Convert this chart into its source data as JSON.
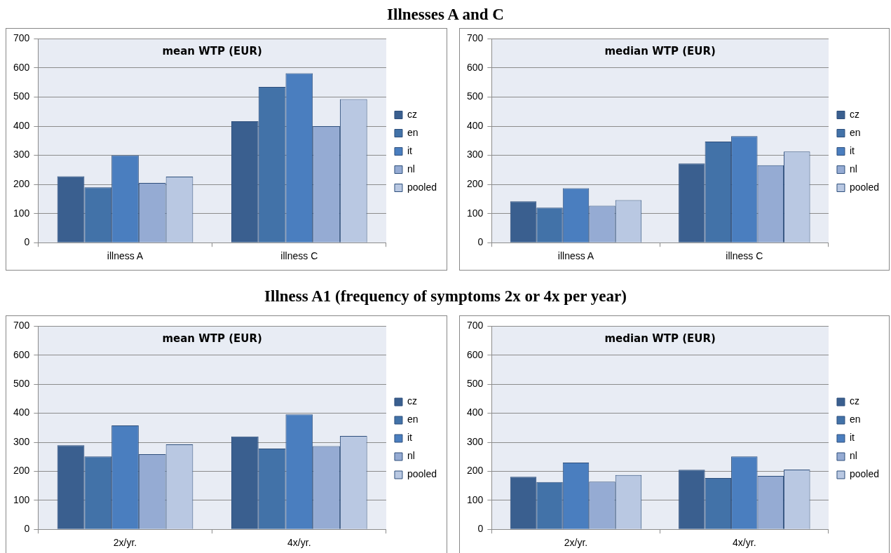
{
  "chart_data": [
    {
      "type": "bar",
      "title": "mean WTP (EUR)",
      "annotations": [
        "Illnesses A and C"
      ],
      "categories": [
        "illness A",
        "illness C"
      ],
      "ylim": [
        0,
        700
      ],
      "yticks": [
        0,
        100,
        200,
        300,
        400,
        500,
        600,
        700
      ],
      "grid": "y",
      "legend": "right",
      "series": [
        {
          "name": "cz",
          "color": "#3a5f8f",
          "values": [
            228,
            417
          ]
        },
        {
          "name": "en",
          "color": "#4272a8",
          "values": [
            190,
            535
          ]
        },
        {
          "name": "it",
          "color": "#4a7ebf",
          "values": [
            300,
            582
          ]
        },
        {
          "name": "nl",
          "color": "#95abd3",
          "values": [
            205,
            400
          ]
        },
        {
          "name": "pooled",
          "color": "#b9c8e2",
          "values": [
            227,
            493
          ]
        }
      ]
    },
    {
      "type": "bar",
      "title": "median WTP (EUR)",
      "categories": [
        "illness A",
        "illness C"
      ],
      "ylim": [
        0,
        700
      ],
      "yticks": [
        0,
        100,
        200,
        300,
        400,
        500,
        600,
        700
      ],
      "grid": "y",
      "legend": "right",
      "series": [
        {
          "name": "cz",
          "color": "#3a5f8f",
          "values": [
            142,
            272
          ]
        },
        {
          "name": "en",
          "color": "#4272a8",
          "values": [
            120,
            347
          ]
        },
        {
          "name": "it",
          "color": "#4a7ebf",
          "values": [
            187,
            366
          ]
        },
        {
          "name": "nl",
          "color": "#95abd3",
          "values": [
            127,
            266
          ]
        },
        {
          "name": "pooled",
          "color": "#b9c8e2",
          "values": [
            146,
            313
          ]
        }
      ]
    },
    {
      "type": "bar",
      "title": "mean WTP (EUR)",
      "annotations": [
        "Illness A1 (frequency of symptoms 2x or 4x per year)"
      ],
      "categories": [
        "2x/yr.",
        "4x/yr."
      ],
      "ylim": [
        0,
        700
      ],
      "yticks": [
        0,
        100,
        200,
        300,
        400,
        500,
        600,
        700
      ],
      "grid": "y",
      "legend": "right",
      "series": [
        {
          "name": "cz",
          "color": "#3a5f8f",
          "values": [
            290,
            320
          ]
        },
        {
          "name": "en",
          "color": "#4272a8",
          "values": [
            251,
            278
          ]
        },
        {
          "name": "it",
          "color": "#4a7ebf",
          "values": [
            358,
            396
          ]
        },
        {
          "name": "nl",
          "color": "#95abd3",
          "values": [
            259,
            287
          ]
        },
        {
          "name": "pooled",
          "color": "#b9c8e2",
          "values": [
            293,
            322
          ]
        }
      ]
    },
    {
      "type": "bar",
      "title": "median WTP (EUR)",
      "categories": [
        "2x/yr.",
        "4x/yr."
      ],
      "ylim": [
        0,
        700
      ],
      "yticks": [
        0,
        100,
        200,
        300,
        400,
        500,
        600,
        700
      ],
      "grid": "y",
      "legend": "right",
      "series": [
        {
          "name": "cz",
          "color": "#3a5f8f",
          "values": [
            181,
            205
          ]
        },
        {
          "name": "en",
          "color": "#4272a8",
          "values": [
            163,
            177
          ]
        },
        {
          "name": "it",
          "color": "#4a7ebf",
          "values": [
            230,
            251
          ]
        },
        {
          "name": "nl",
          "color": "#95abd3",
          "values": [
            164,
            184
          ]
        },
        {
          "name": "pooled",
          "color": "#b9c8e2",
          "values": [
            187,
            206
          ]
        }
      ]
    }
  ]
}
